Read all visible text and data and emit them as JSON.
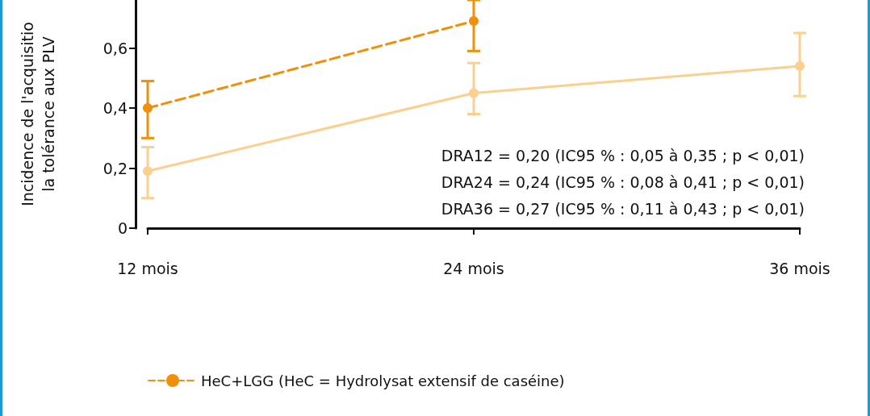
{
  "chart_data": {
    "type": "line",
    "ylabel": "Incidence de l'acquisitio\nla tolérance aux PLV",
    "categories": [
      "12 mois",
      "24 mois",
      "36 mois"
    ],
    "series": [
      {
        "name": "HeC+LGG (HeC = Hydrolysat extensif de caséine)",
        "color": "#f0900a",
        "values": [
          0.4,
          0.69,
          null
        ],
        "errors": [
          [
            0.3,
            0.49
          ],
          [
            0.59,
            0.76
          ],
          null
        ],
        "line_style": "dashed"
      },
      {
        "color": "#fbd08e",
        "values": [
          0.19,
          0.45,
          0.54
        ],
        "errors": [
          [
            0.1,
            0.27
          ],
          [
            0.38,
            0.55
          ],
          [
            0.44,
            0.65
          ]
        ],
        "line_style": "solid"
      }
    ],
    "ylim": [
      0,
      0.76
    ],
    "yticks": [
      0,
      {
        "value": 0.2,
        "label": "0,2"
      },
      {
        "value": 0.4,
        "label": "0,4"
      },
      {
        "value": 0.6,
        "label": "0,6"
      }
    ],
    "annotations": [
      "DRA12 = 0,20 (IC95 % : 0,05 à 0,35 ; p < 0,01)",
      "DRA24 = 0,24 (IC95 % : 0,08 à 0,41 ; p < 0,01)",
      "DRA36 = 0,27 (IC95 % : 0,11 à 0,43 ; p < 0,01)"
    ],
    "grid": false,
    "legend": "bottom",
    "marker": "circle"
  }
}
